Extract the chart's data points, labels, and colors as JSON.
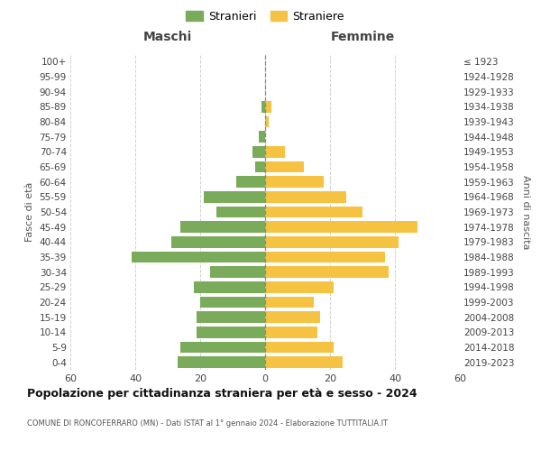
{
  "age_groups": [
    "0-4",
    "5-9",
    "10-14",
    "15-19",
    "20-24",
    "25-29",
    "30-34",
    "35-39",
    "40-44",
    "45-49",
    "50-54",
    "55-59",
    "60-64",
    "65-69",
    "70-74",
    "75-79",
    "80-84",
    "85-89",
    "90-94",
    "95-99",
    "100+"
  ],
  "birth_years": [
    "2019-2023",
    "2014-2018",
    "2009-2013",
    "2004-2008",
    "1999-2003",
    "1994-1998",
    "1989-1993",
    "1984-1988",
    "1979-1983",
    "1974-1978",
    "1969-1973",
    "1964-1968",
    "1959-1963",
    "1954-1958",
    "1949-1953",
    "1944-1948",
    "1939-1943",
    "1934-1938",
    "1929-1933",
    "1924-1928",
    "≤ 1923"
  ],
  "males": [
    27,
    26,
    21,
    21,
    20,
    22,
    17,
    41,
    29,
    26,
    15,
    19,
    9,
    3,
    4,
    2,
    0,
    1,
    0,
    0,
    0
  ],
  "females": [
    24,
    21,
    16,
    17,
    15,
    21,
    38,
    37,
    41,
    47,
    30,
    25,
    18,
    12,
    6,
    0,
    1,
    2,
    0,
    0,
    0
  ],
  "male_color": "#7aab5a",
  "female_color": "#f5c242",
  "grid_color": "#d0d0d0",
  "center_line_color": "#888888",
  "title": "Popolazione per cittadinanza straniera per età e sesso - 2024",
  "subtitle": "COMUNE DI RONCOFERRARO (MN) - Dati ISTAT al 1° gennaio 2024 - Elaborazione TUTTITALIA.IT",
  "xlabel_left": "Maschi",
  "xlabel_right": "Femmine",
  "ylabel_left": "Fasce di età",
  "ylabel_right": "Anni di nascita",
  "legend_male": "Stranieri",
  "legend_female": "Straniere",
  "xlim": 60,
  "background_color": "#ffffff"
}
